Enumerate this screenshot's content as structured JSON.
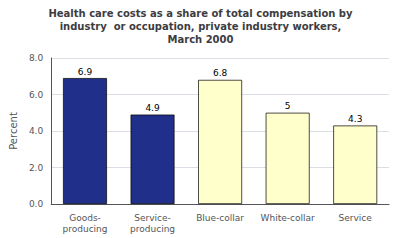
{
  "chart_data": {
    "type": "bar",
    "title": "Health care costs as a share of total compensation by\nindustry  or occupation, private industry workers,\nMarch 2000",
    "categories": [
      "Goods-\nproducing",
      "Service-\nproducing",
      "Blue-collar",
      "White-collar",
      "Service"
    ],
    "values": [
      6.9,
      4.9,
      6.8,
      5.0,
      4.3
    ],
    "colors": [
      "#1f2f8a",
      "#1f2f8a",
      "#ffffcc",
      "#ffffcc",
      "#ffffcc"
    ],
    "ylabel": "Percent",
    "ylim": [
      0.0,
      8.0
    ],
    "yticks": [
      {
        "value": 0.0,
        "label": "0.0"
      },
      {
        "value": 2.0,
        "label": "2.0"
      },
      {
        "value": 4.0,
        "label": "4.0"
      },
      {
        "value": 6.0,
        "label": "6.0"
      },
      {
        "value": 8.0,
        "label": "8.0"
      }
    ],
    "grid": true,
    "data_labels": true
  }
}
